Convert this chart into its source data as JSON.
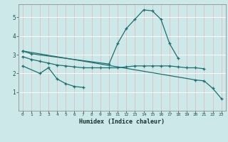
{
  "title": "",
  "xlabel": "Humidex (Indice chaleur)",
  "ylabel": "",
  "background_color": "#cce8e8",
  "grid_color_v": "#e8b0b0",
  "grid_color_h": "#ffffff",
  "line_color": "#1a7070",
  "xlim": [
    -0.5,
    23.5
  ],
  "ylim": [
    0,
    5.7
  ],
  "xticks": [
    0,
    1,
    2,
    3,
    4,
    5,
    6,
    7,
    8,
    9,
    10,
    11,
    12,
    13,
    14,
    15,
    16,
    17,
    18,
    19,
    20,
    21,
    22,
    23
  ],
  "yticks": [
    1,
    2,
    3,
    4,
    5
  ],
  "series": [
    {
      "x": [
        0,
        1,
        10,
        11,
        12,
        13,
        14,
        15,
        16,
        17,
        18
      ],
      "y": [
        3.2,
        3.05,
        2.5,
        3.6,
        4.4,
        4.9,
        5.4,
        5.35,
        4.9,
        3.6,
        2.8
      ]
    },
    {
      "x": [
        0,
        1,
        2,
        3,
        4,
        5,
        6,
        7,
        8,
        9,
        10,
        11,
        12,
        13,
        14,
        15,
        16,
        17,
        18,
        19,
        20,
        21
      ],
      "y": [
        2.9,
        2.75,
        2.65,
        2.55,
        2.45,
        2.4,
        2.35,
        2.3,
        2.3,
        2.3,
        2.3,
        2.3,
        2.35,
        2.4,
        2.4,
        2.4,
        2.4,
        2.4,
        2.35,
        2.3,
        2.3,
        2.25
      ]
    },
    {
      "x": [
        0,
        20,
        21,
        22,
        23
      ],
      "y": [
        3.2,
        1.65,
        1.6,
        1.2,
        0.65
      ]
    },
    {
      "x": [
        0,
        2,
        3,
        4,
        5,
        6,
        7
      ],
      "y": [
        2.4,
        2.0,
        2.3,
        1.7,
        1.45,
        1.3,
        1.25
      ]
    }
  ]
}
